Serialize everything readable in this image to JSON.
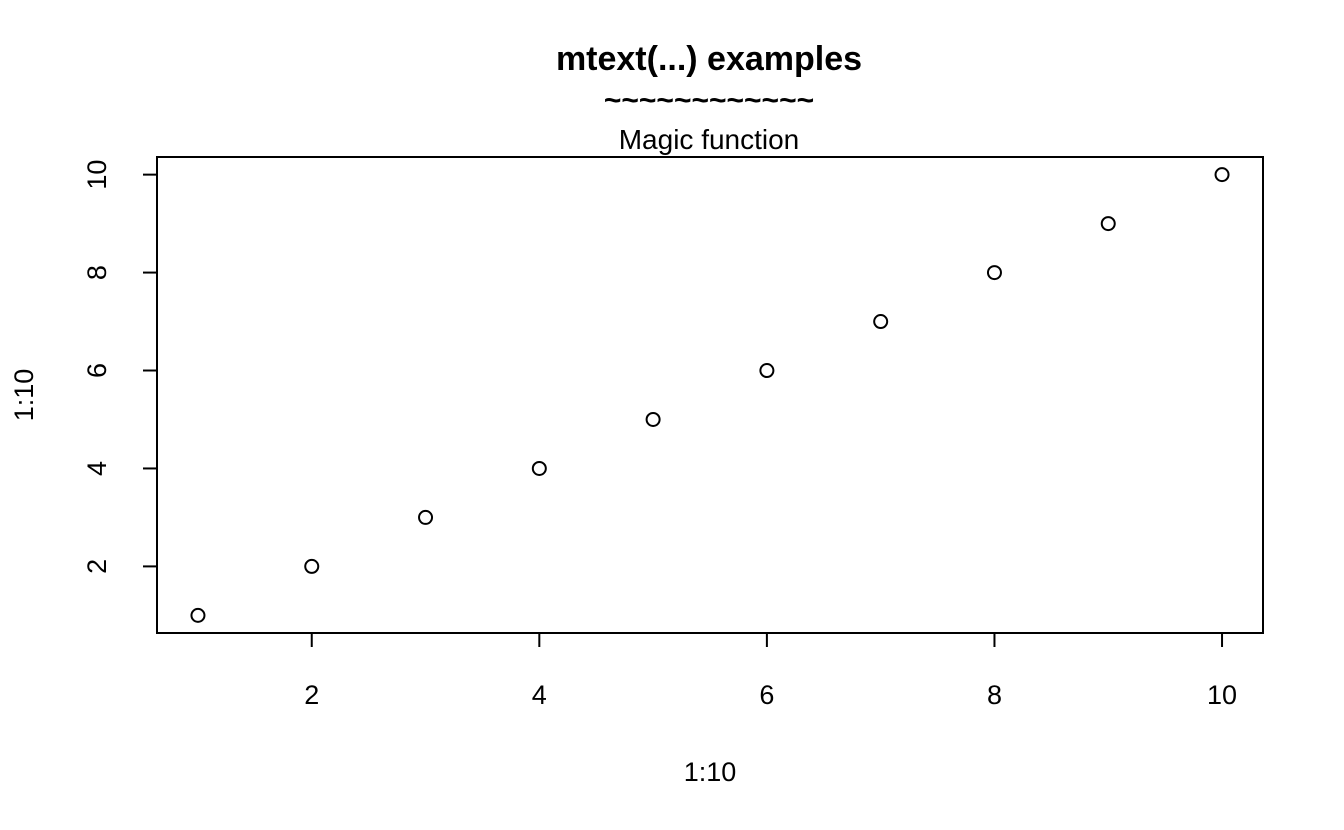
{
  "chart_data": {
    "type": "scatter",
    "title": "mtext(...) examples",
    "title_decoration": "~~~~~~~~~~~~",
    "subtitle": "Magic function",
    "xlabel": "1:10",
    "ylabel": "1:10",
    "x": [
      1,
      2,
      3,
      4,
      5,
      6,
      7,
      8,
      9,
      10
    ],
    "y": [
      1,
      2,
      3,
      4,
      5,
      6,
      7,
      8,
      9,
      10
    ],
    "xlim": [
      0.64,
      10.36
    ],
    "ylim": [
      0.64,
      10.36
    ],
    "x_ticks": [
      "2",
      "4",
      "6",
      "8",
      "10"
    ],
    "y_ticks": [
      "2",
      "4",
      "6",
      "8",
      "10"
    ],
    "marker": "open-circle",
    "grid": false,
    "legend": false
  }
}
